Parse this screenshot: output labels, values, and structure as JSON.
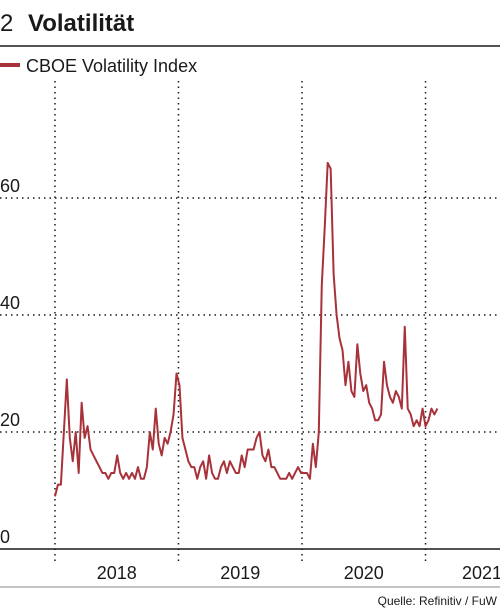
{
  "chart_data": {
    "type": "line",
    "number": "2",
    "title": "Volatilität",
    "source": "Quelle: Refinitiv / FuW",
    "grid": true,
    "ylim": [
      0,
      80
    ],
    "yticks": [
      0,
      20,
      40,
      60
    ],
    "xlim": [
      2017.555,
      2021.603
    ],
    "xticks": [
      2018,
      2019,
      2020,
      2021
    ],
    "x": [
      2018,
      2018.024,
      2018.048,
      2018.072,
      2018.096,
      2018.12,
      2018.144,
      2018.168,
      2018.192,
      2018.216,
      2018.24,
      2018.264,
      2018.288,
      2018.312,
      2018.336,
      2018.36,
      2018.384,
      2018.408,
      2018.432,
      2018.456,
      2018.48,
      2018.504,
      2018.528,
      2018.552,
      2018.576,
      2018.6,
      2018.624,
      2018.648,
      2018.672,
      2018.696,
      2018.72,
      2018.744,
      2018.768,
      2018.792,
      2018.816,
      2018.84,
      2018.864,
      2018.888,
      2018.912,
      2018.936,
      2018.96,
      2018.984,
      2019.008,
      2019.032,
      2019.056,
      2019.08,
      2019.104,
      2019.128,
      2019.152,
      2019.176,
      2019.2,
      2019.224,
      2019.248,
      2019.272,
      2019.296,
      2019.32,
      2019.344,
      2019.368,
      2019.392,
      2019.416,
      2019.44,
      2019.464,
      2019.488,
      2019.512,
      2019.536,
      2019.56,
      2019.584,
      2019.608,
      2019.632,
      2019.656,
      2019.68,
      2019.704,
      2019.728,
      2019.752,
      2019.776,
      2019.8,
      2019.824,
      2019.848,
      2019.872,
      2019.896,
      2019.92,
      2019.944,
      2019.968,
      2019.992,
      2020.016,
      2020.04,
      2020.064,
      2020.088,
      2020.112,
      2020.136,
      2020.16,
      2020.184,
      2020.208,
      2020.232,
      2020.256,
      2020.28,
      2020.304,
      2020.328,
      2020.352,
      2020.376,
      2020.4,
      2020.424,
      2020.448,
      2020.472,
      2020.496,
      2020.52,
      2020.544,
      2020.568,
      2020.592,
      2020.616,
      2020.64,
      2020.664,
      2020.688,
      2020.712,
      2020.736,
      2020.76,
      2020.784,
      2020.808,
      2020.832,
      2020.856,
      2020.88,
      2020.904,
      2020.928,
      2020.952,
      2020.976,
      2021,
      2021.024,
      2021.048,
      2021.072,
      2021.096
    ],
    "series": [
      {
        "name": "CBOE Volatility Index",
        "color": "#a8323a",
        "values": [
          9,
          11,
          11,
          20,
          29,
          19,
          15,
          20,
          13,
          25,
          19,
          21,
          17,
          16,
          15,
          14,
          13,
          13,
          12,
          13,
          13,
          16,
          13,
          12,
          13,
          12,
          13,
          12,
          14,
          12,
          12,
          14,
          20,
          17,
          24,
          18,
          16,
          19,
          18,
          20,
          23,
          30,
          28,
          19,
          17,
          15,
          14,
          14,
          12,
          14,
          15,
          12,
          16,
          13,
          12,
          12,
          14,
          15,
          13,
          15,
          14,
          13,
          13,
          16,
          14,
          17,
          17,
          17,
          19,
          20,
          16,
          15,
          17,
          14,
          14,
          13,
          12,
          12,
          12,
          13,
          12,
          13,
          14,
          13,
          13,
          13,
          12,
          18,
          14,
          20,
          45,
          55,
          66,
          65,
          47,
          40,
          36,
          34,
          28,
          32,
          27,
          26,
          35,
          30,
          27,
          28,
          25,
          24,
          22,
          22,
          23,
          32,
          28,
          26,
          25,
          27,
          26,
          24,
          38,
          24,
          23,
          21,
          22,
          21,
          24,
          21,
          22,
          24,
          23,
          24
        ]
      }
    ]
  }
}
